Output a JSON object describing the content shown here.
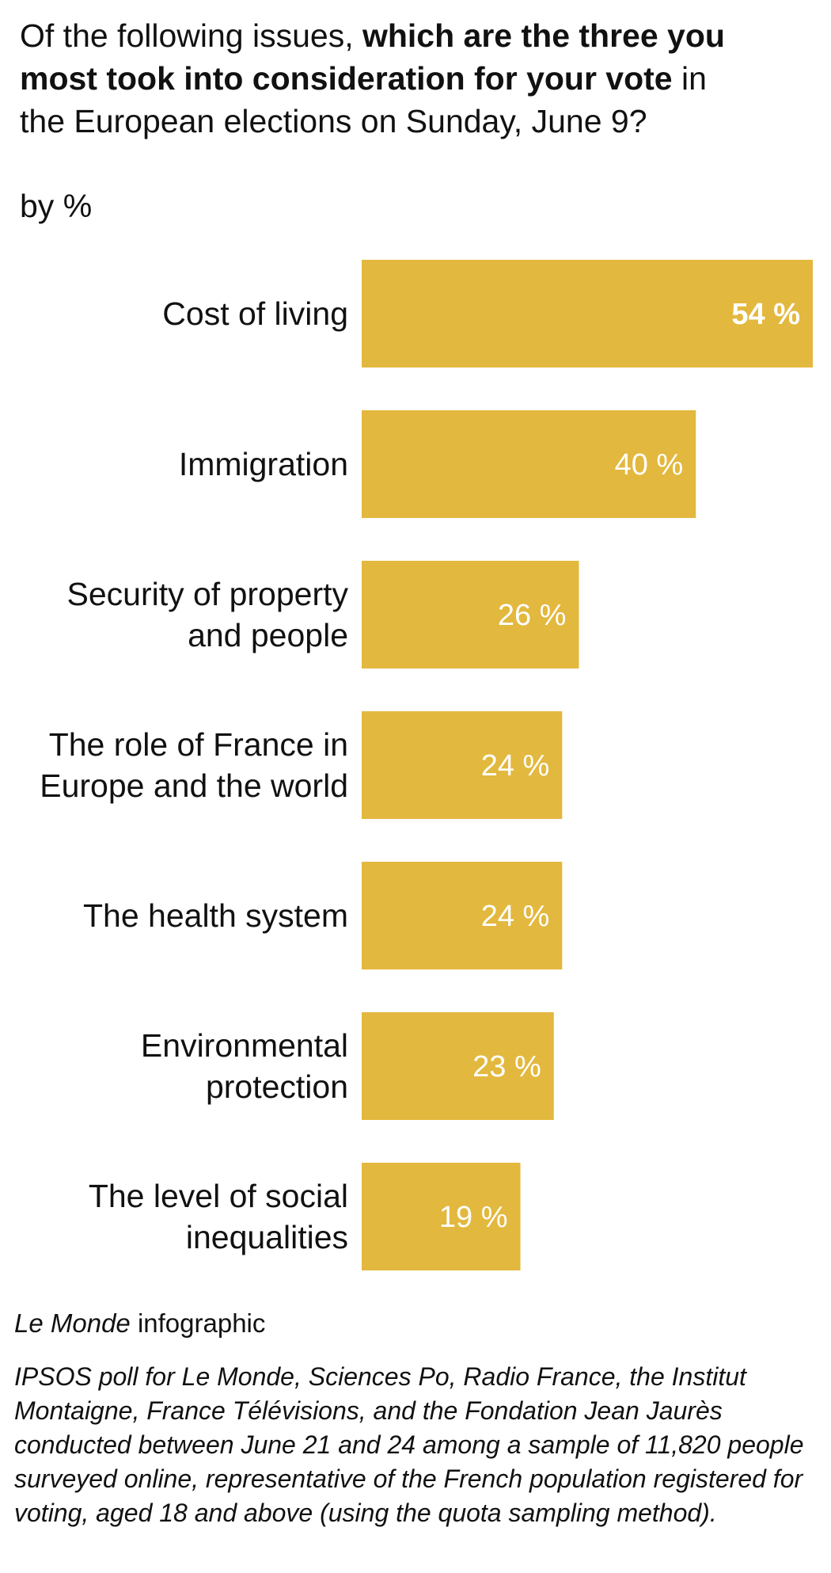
{
  "header": {
    "title_part1": "Of the following issues, ",
    "title_bold": "which are the three you most took into consideration for your vote",
    "title_part2": " in the European elections on Sunday, June 9?",
    "unit": "by %"
  },
  "chart_data": {
    "type": "bar",
    "orientation": "horizontal",
    "categories": [
      [
        "Cost of living"
      ],
      [
        "Immigration"
      ],
      [
        "Security of property",
        "and people"
      ],
      [
        "The role of France in",
        "Europe and the world"
      ],
      [
        "The health system"
      ],
      [
        "Environmental",
        "protection"
      ],
      [
        "The level of social",
        "inequalities"
      ]
    ],
    "values": [
      54,
      40,
      26,
      24,
      24,
      23,
      19
    ],
    "value_labels": [
      "54 %",
      "40 %",
      "26 %",
      "24 %",
      "24 %",
      "23 %",
      "19 %"
    ],
    "bar_color": "#e3b83e",
    "label_color": "#ffffff",
    "xlim": [
      0,
      54
    ],
    "grid": false,
    "legend": false
  },
  "footer": {
    "credit_italic": "Le Monde",
    "credit_rest": " infographic",
    "source": "IPSOS poll for Le Monde, Sciences Po, Radio France, the Institut Montaigne, France Télévisions, and the Fondation Jean Jaurès conducted between June 21 and 24 among a sample of 11,820 people surveyed online, representative of the French population registered for voting, aged 18 and above (using the quota sampling method)."
  }
}
